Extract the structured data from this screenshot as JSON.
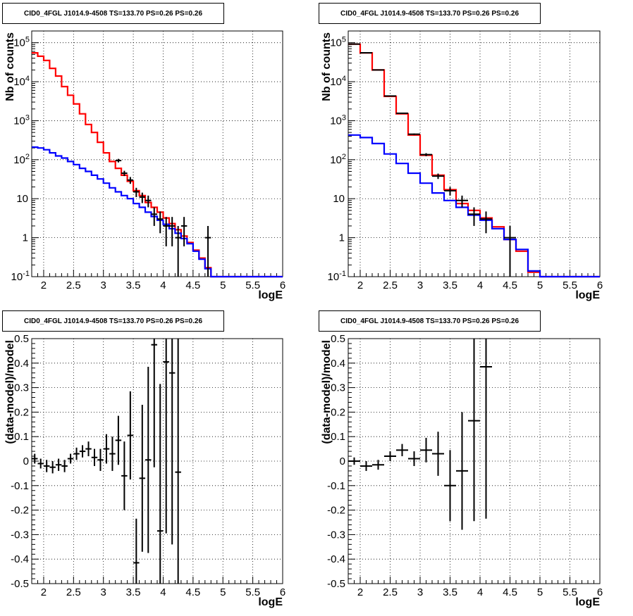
{
  "colors": {
    "data": "#000000",
    "model_total": "#ff0000",
    "model_component": "#0000ff"
  },
  "chart_data": [
    {
      "type": "line",
      "title": "CID0_4FGL J1014.9-4508 TS=133.70 PS=0.26 PS=0.26",
      "xlabel": "logE",
      "ylabel": "Nb of counts",
      "xlim": [
        1.8,
        6.0
      ],
      "ylim": [
        0.1,
        200000
      ],
      "yscale": "log",
      "grid": true,
      "xticks": [
        "2",
        "2.5",
        "3",
        "3.5",
        "4",
        "4.5",
        "5",
        "5.5",
        "6"
      ],
      "yticks": [
        "10^-1",
        "1",
        "10",
        "10^2",
        "10^3",
        "10^4",
        "10^5"
      ],
      "bin_edges": [
        1.8,
        1.9,
        2.0,
        2.1,
        2.2,
        2.3,
        2.4,
        2.5,
        2.6,
        2.7,
        2.8,
        2.9,
        3.0,
        3.1,
        3.2,
        3.3,
        3.4,
        3.5,
        3.6,
        3.7,
        3.8,
        3.9,
        4.0,
        4.1,
        4.2,
        4.3,
        4.4,
        4.5,
        4.6,
        4.7,
        4.8,
        4.9,
        5.0,
        5.1,
        5.2,
        5.3,
        5.4,
        5.5,
        5.6,
        5.7,
        5.8,
        5.9,
        6.0
      ],
      "series": [
        {
          "role": "model_total",
          "values": [
            55000,
            45000,
            35000,
            22000,
            14000,
            7500,
            4500,
            2700,
            1500,
            800,
            500,
            280,
            150,
            90,
            60,
            40,
            28,
            16,
            12,
            8,
            6,
            4.5,
            3.2,
            2.3,
            1.6,
            1.1,
            0.75,
            0.48,
            0.3,
            0.17,
            0.1,
            0.1,
            0.1,
            0.1,
            0.1,
            0.1,
            0.1,
            0.1,
            0.1,
            0.1,
            0.1,
            0.1
          ]
        },
        {
          "role": "model_component",
          "values": [
            210,
            200,
            180,
            150,
            125,
            110,
            90,
            75,
            60,
            50,
            40,
            32,
            25,
            19,
            15,
            12,
            10,
            7.5,
            6,
            4.5,
            3.5,
            2.8,
            2.2,
            1.7,
            1.3,
            0.95,
            0.7,
            0.45,
            0.28,
            0.16,
            0.1,
            0.1,
            0.1,
            0.1,
            0.1,
            0.1,
            0.1,
            0.1,
            0.1,
            0.1,
            0.1,
            0.1
          ]
        },
        {
          "role": "data",
          "points": [
            {
              "x": 3.25,
              "y": 95,
              "yerr": 10
            },
            {
              "x": 3.35,
              "y": 45,
              "yerr": 7
            },
            {
              "x": 3.45,
              "y": 30,
              "yerr": 6
            },
            {
              "x": 3.55,
              "y": 15,
              "yerr": 4
            },
            {
              "x": 3.65,
              "y": 11,
              "yerr": 3.3
            },
            {
              "x": 3.75,
              "y": 9,
              "yerr": 3
            },
            {
              "x": 3.85,
              "y": 4,
              "yerr": 2
            },
            {
              "x": 3.95,
              "y": 3,
              "yerr": 1.7
            },
            {
              "x": 4.05,
              "y": 2,
              "yerr": 1.4
            },
            {
              "x": 4.15,
              "y": 2,
              "yerr": 1.4
            },
            {
              "x": 4.25,
              "y": 1,
              "yerr": 1
            },
            {
              "x": 4.35,
              "y": 2,
              "yerr": 1.4
            },
            {
              "x": 4.75,
              "y": 1,
              "yerr": 1
            }
          ]
        }
      ]
    },
    {
      "type": "line",
      "title": "CID0_4FGL J1014.9-4508 TS=133.70 PS=0.26 PS=0.26",
      "xlabel": "logE",
      "ylabel": "Nb of counts",
      "xlim": [
        1.8,
        6.0
      ],
      "ylim": [
        0.1,
        200000
      ],
      "yscale": "log",
      "grid": true,
      "xticks": [
        "2",
        "2.5",
        "3",
        "3.5",
        "4",
        "4.5",
        "5",
        "5.5",
        "6"
      ],
      "yticks": [
        "10^-1",
        "1",
        "10",
        "10^2",
        "10^3",
        "10^4",
        "10^5"
      ],
      "bin_edges": [
        1.8,
        2.0,
        2.2,
        2.4,
        2.6,
        2.8,
        3.0,
        3.2,
        3.4,
        3.6,
        3.8,
        4.0,
        4.2,
        4.4,
        4.6,
        4.8,
        5.0,
        5.2,
        5.4,
        5.6,
        5.8,
        6.0
      ],
      "series": [
        {
          "role": "model_total",
          "values": [
            92000,
            55000,
            20000,
            4200,
            1500,
            430,
            130,
            40,
            17,
            7.5,
            5,
            3.2,
            1.9,
            0.9,
            0.45,
            0.13,
            0.1,
            0.1,
            0.1,
            0.1,
            0.1
          ]
        },
        {
          "role": "model_component",
          "values": [
            430,
            370,
            260,
            140,
            80,
            45,
            25,
            14,
            9,
            6,
            3.8,
            2.8,
            1.7,
            0.9,
            0.5,
            0.14,
            0.1,
            0.1,
            0.1,
            0.1,
            0.1
          ]
        },
        {
          "role": "data",
          "points": [
            {
              "x": 1.9,
              "y": 92000,
              "yerr": 300
            },
            {
              "x": 2.1,
              "y": 55000,
              "yerr": 230
            },
            {
              "x": 2.3,
              "y": 20000,
              "yerr": 140
            },
            {
              "x": 2.5,
              "y": 4300,
              "yerr": 66
            },
            {
              "x": 2.7,
              "y": 1550,
              "yerr": 40
            },
            {
              "x": 2.9,
              "y": 450,
              "yerr": 21
            },
            {
              "x": 3.1,
              "y": 135,
              "yerr": 12
            },
            {
              "x": 3.3,
              "y": 38,
              "yerr": 6
            },
            {
              "x": 3.5,
              "y": 16,
              "yerr": 4
            },
            {
              "x": 3.7,
              "y": 9,
              "yerr": 3
            },
            {
              "x": 3.9,
              "y": 4,
              "yerr": 2
            },
            {
              "x": 4.1,
              "y": 3,
              "yerr": 1.7
            },
            {
              "x": 4.5,
              "y": 1,
              "yerr": 1
            }
          ]
        }
      ]
    },
    {
      "type": "scatter",
      "title": "CID0_4FGL J1014.9-4508 TS=133.70 PS=0.26 PS=0.26",
      "xlabel": "logE",
      "ylabel": "(data-model)/model",
      "xlim": [
        1.8,
        6.0
      ],
      "ylim": [
        -0.5,
        0.5
      ],
      "grid": true,
      "xticks": [
        "2",
        "2.5",
        "3",
        "3.5",
        "4",
        "4.5",
        "5",
        "5.5",
        "6"
      ],
      "yticks": [
        "-0.5",
        "-0.4",
        "-0.3",
        "-0.2",
        "-0.1",
        "0",
        "0.1",
        "0.2",
        "0.3",
        "0.4",
        "0.5"
      ],
      "series": [
        {
          "role": "data",
          "points": [
            {
              "x": 1.85,
              "y": 0.01,
              "xerr": 0.05,
              "yerr": 0.02
            },
            {
              "x": 1.95,
              "y": -0.01,
              "xerr": 0.05,
              "yerr": 0.02
            },
            {
              "x": 2.05,
              "y": -0.02,
              "xerr": 0.05,
              "yerr": 0.025
            },
            {
              "x": 2.15,
              "y": -0.025,
              "xerr": 0.05,
              "yerr": 0.025
            },
            {
              "x": 2.25,
              "y": -0.015,
              "xerr": 0.05,
              "yerr": 0.025
            },
            {
              "x": 2.35,
              "y": -0.02,
              "xerr": 0.05,
              "yerr": 0.025
            },
            {
              "x": 2.45,
              "y": 0.01,
              "xerr": 0.05,
              "yerr": 0.02
            },
            {
              "x": 2.55,
              "y": 0.03,
              "xerr": 0.05,
              "yerr": 0.025
            },
            {
              "x": 2.65,
              "y": 0.04,
              "xerr": 0.05,
              "yerr": 0.025
            },
            {
              "x": 2.75,
              "y": 0.05,
              "xerr": 0.05,
              "yerr": 0.03
            },
            {
              "x": 2.85,
              "y": 0.015,
              "xerr": 0.05,
              "yerr": 0.035
            },
            {
              "x": 2.95,
              "y": 0.005,
              "xerr": 0.05,
              "yerr": 0.045
            },
            {
              "x": 3.05,
              "y": 0.05,
              "xerr": 0.05,
              "yerr": 0.06
            },
            {
              "x": 3.15,
              "y": 0.03,
              "xerr": 0.05,
              "yerr": 0.07
            },
            {
              "x": 3.25,
              "y": 0.085,
              "xerr": 0.05,
              "yerr": 0.1
            },
            {
              "x": 3.35,
              "y": -0.06,
              "xerr": 0.05,
              "yerr": 0.14
            },
            {
              "x": 3.45,
              "y": 0.105,
              "xerr": 0.05,
              "yerr": 0.18
            },
            {
              "x": 3.55,
              "y": -0.415,
              "xerr": 0.05,
              "yerr": 0.18
            },
            {
              "x": 3.65,
              "y": -0.07,
              "xerr": 0.05,
              "yerr": 0.3
            },
            {
              "x": 3.75,
              "y": 0.005,
              "xerr": 0.05,
              "yerr": 0.38
            },
            {
              "x": 3.85,
              "y": 0.475,
              "xerr": 0.05,
              "yerr": 0.5
            },
            {
              "x": 3.95,
              "y": -0.285,
              "xerr": 0.05,
              "yerr": 0.6
            },
            {
              "x": 4.05,
              "y": 0.405,
              "xerr": 0.05,
              "yerr": 0.7
            },
            {
              "x": 4.15,
              "y": 0.36,
              "xerr": 0.05,
              "yerr": 0.7
            },
            {
              "x": 4.25,
              "y": -0.045,
              "xerr": 0.05,
              "yerr": 1.0
            }
          ]
        }
      ]
    },
    {
      "type": "scatter",
      "title": "CID0_4FGL J1014.9-4508 TS=133.70 PS=0.26 PS=0.26",
      "xlabel": "logE",
      "ylabel": "(data-model)/model",
      "xlim": [
        1.8,
        6.0
      ],
      "ylim": [
        -0.5,
        0.5
      ],
      "grid": true,
      "xticks": [
        "2",
        "2.5",
        "3",
        "3.5",
        "4",
        "4.5",
        "5",
        "5.5",
        "6"
      ],
      "yticks": [
        "-0.5",
        "-0.4",
        "-0.3",
        "-0.2",
        "-0.1",
        "0",
        "0.1",
        "0.2",
        "0.3",
        "0.4",
        "0.5"
      ],
      "series": [
        {
          "role": "data",
          "points": [
            {
              "x": 1.9,
              "y": 0.0,
              "xerr": 0.1,
              "yerr": 0.015
            },
            {
              "x": 2.1,
              "y": -0.02,
              "xerr": 0.1,
              "yerr": 0.02
            },
            {
              "x": 2.3,
              "y": -0.015,
              "xerr": 0.1,
              "yerr": 0.02
            },
            {
              "x": 2.5,
              "y": 0.02,
              "xerr": 0.1,
              "yerr": 0.02
            },
            {
              "x": 2.7,
              "y": 0.045,
              "xerr": 0.1,
              "yerr": 0.025
            },
            {
              "x": 2.9,
              "y": 0.01,
              "xerr": 0.1,
              "yerr": 0.03
            },
            {
              "x": 3.1,
              "y": 0.045,
              "xerr": 0.1,
              "yerr": 0.05
            },
            {
              "x": 3.3,
              "y": 0.03,
              "xerr": 0.1,
              "yerr": 0.09
            },
            {
              "x": 3.5,
              "y": -0.1,
              "xerr": 0.1,
              "yerr": 0.145
            },
            {
              "x": 3.7,
              "y": -0.04,
              "xerr": 0.1,
              "yerr": 0.24
            },
            {
              "x": 3.9,
              "y": 0.165,
              "xerr": 0.1,
              "yerr": 0.41
            },
            {
              "x": 4.1,
              "y": 0.385,
              "xerr": 0.1,
              "yerr": 0.62
            }
          ]
        }
      ]
    }
  ]
}
